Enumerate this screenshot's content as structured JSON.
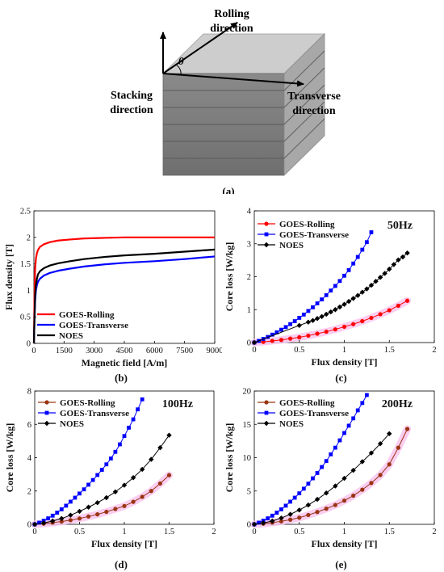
{
  "figure_a": {
    "labels": {
      "rolling": [
        "Rolling",
        "direction"
      ],
      "transverse": [
        "Transverse",
        "direction"
      ],
      "stacking": [
        "Stacking",
        "direction"
      ],
      "angle": "θ"
    },
    "caption": "(a)"
  },
  "colors": {
    "goes_rolling_b": "#ff0000",
    "goes_rolling": "#9a3412",
    "goes_transverse": "#0000ff",
    "noes": "#000000",
    "highlight": "#f9c6ee"
  },
  "chart_data": [
    {
      "id": "b",
      "type": "line",
      "caption": "(b)",
      "xlabel": "Magnetic field [A/m]",
      "ylabel": "Flux density [T]",
      "xlim": [
        0,
        9000
      ],
      "ylim": [
        0,
        2.5
      ],
      "xticks": [
        "0",
        "1500",
        "3000",
        "4500",
        "6000",
        "7500",
        "9000"
      ],
      "yticks": [
        "0",
        "0.5",
        "1",
        "1.5",
        "2",
        "2.5"
      ],
      "xtick_values": [
        0,
        1500,
        3000,
        4500,
        6000,
        7500,
        9000
      ],
      "ytick_values": [
        0,
        0.5,
        1,
        1.5,
        2,
        2.5
      ],
      "legend_position": "bottom-left",
      "series": [
        {
          "name": "GOES-Rolling",
          "color": "#ff0000",
          "x": [
            0,
            30,
            60,
            100,
            150,
            200,
            300,
            500,
            800,
            1200,
            1800,
            2500,
            3500,
            4500,
            6000,
            7500,
            9000
          ],
          "y": [
            0,
            0.9,
            1.4,
            1.6,
            1.7,
            1.76,
            1.82,
            1.87,
            1.91,
            1.94,
            1.96,
            1.98,
            1.99,
            2.0,
            2.0,
            2.0,
            2.0
          ]
        },
        {
          "name": "GOES-Transverse",
          "color": "#0000ff",
          "x": [
            0,
            30,
            60,
            100,
            150,
            200,
            300,
            500,
            800,
            1200,
            1800,
            2500,
            3500,
            4500,
            6000,
            7500,
            9000
          ],
          "y": [
            0,
            0.45,
            0.8,
            1.0,
            1.1,
            1.16,
            1.22,
            1.28,
            1.33,
            1.37,
            1.41,
            1.45,
            1.49,
            1.52,
            1.55,
            1.59,
            1.64
          ]
        },
        {
          "name": "NOES",
          "color": "#000000",
          "x": [
            0,
            30,
            60,
            100,
            150,
            200,
            300,
            500,
            800,
            1200,
            1800,
            2500,
            3500,
            4500,
            6000,
            7500,
            9000
          ],
          "y": [
            0,
            0.5,
            0.9,
            1.1,
            1.22,
            1.3,
            1.36,
            1.42,
            1.47,
            1.51,
            1.55,
            1.59,
            1.63,
            1.66,
            1.69,
            1.73,
            1.77
          ]
        }
      ]
    },
    {
      "id": "c",
      "type": "line",
      "caption": "(c)",
      "annotation": "50Hz",
      "xlabel": "Flux density [T]",
      "ylabel": "Core loss [W/kg]",
      "xlim": [
        0,
        2
      ],
      "ylim": [
        0,
        4
      ],
      "xticks": [
        "0",
        "0.5",
        "1",
        "1.5",
        "2"
      ],
      "yticks": [
        "0",
        "1",
        "2",
        "3",
        "4"
      ],
      "xtick_values": [
        0,
        0.5,
        1,
        1.5,
        2
      ],
      "ytick_values": [
        0,
        1,
        2,
        3,
        4
      ],
      "legend_position": "top-left",
      "series": [
        {
          "name": "GOES-Rolling",
          "color": "#ff0000",
          "marker": "circle",
          "highlight": true,
          "x": [
            0.0,
            0.1,
            0.2,
            0.3,
            0.4,
            0.5,
            0.6,
            0.7,
            0.8,
            0.9,
            1.0,
            1.1,
            1.2,
            1.3,
            1.4,
            1.5,
            1.6,
            1.7
          ],
          "y": [
            0.0,
            0.02,
            0.05,
            0.08,
            0.12,
            0.16,
            0.21,
            0.27,
            0.33,
            0.4,
            0.48,
            0.56,
            0.65,
            0.75,
            0.86,
            0.98,
            1.12,
            1.27
          ]
        },
        {
          "name": "GOES-Transverse",
          "color": "#0000ff",
          "marker": "square",
          "x": [
            0.0,
            0.05,
            0.1,
            0.15,
            0.2,
            0.25,
            0.3,
            0.35,
            0.4,
            0.45,
            0.5,
            0.55,
            0.6,
            0.65,
            0.7,
            0.75,
            0.8,
            0.85,
            0.9,
            0.95,
            1.0,
            1.05,
            1.1,
            1.15,
            1.2,
            1.25,
            1.3
          ],
          "y": [
            0.0,
            0.05,
            0.11,
            0.17,
            0.24,
            0.31,
            0.39,
            0.47,
            0.56,
            0.65,
            0.75,
            0.85,
            0.96,
            1.07,
            1.19,
            1.31,
            1.44,
            1.58,
            1.72,
            1.87,
            2.03,
            2.2,
            2.4,
            2.6,
            2.82,
            3.05,
            3.35
          ]
        },
        {
          "name": "NOES",
          "color": "#000000",
          "marker": "diamond",
          "x": [
            0.0,
            0.5,
            0.6,
            0.65,
            0.7,
            0.75,
            0.8,
            0.85,
            0.9,
            0.95,
            1.0,
            1.05,
            1.1,
            1.15,
            1.2,
            1.25,
            1.3,
            1.35,
            1.4,
            1.45,
            1.5,
            1.55,
            1.6,
            1.65,
            1.7
          ],
          "y": [
            0.0,
            0.52,
            0.62,
            0.67,
            0.73,
            0.79,
            0.86,
            0.93,
            1.0,
            1.08,
            1.16,
            1.25,
            1.34,
            1.43,
            1.53,
            1.63,
            1.74,
            1.86,
            1.98,
            2.1,
            2.23,
            2.37,
            2.51,
            2.6,
            2.72
          ]
        }
      ]
    },
    {
      "id": "d",
      "type": "line",
      "caption": "(d)",
      "annotation": "100Hz",
      "xlabel": "Flux density [T]",
      "ylabel": "Core loss [W/kg]",
      "xlim": [
        0,
        2
      ],
      "ylim": [
        0,
        8
      ],
      "xticks": [
        "0",
        "0.5",
        "1",
        "1.5",
        "2"
      ],
      "yticks": [
        "0",
        "2",
        "4",
        "6",
        "8"
      ],
      "xtick_values": [
        0,
        0.5,
        1,
        1.5,
        2
      ],
      "ytick_values": [
        0,
        2,
        4,
        6,
        8
      ],
      "legend_position": "top-left",
      "series": [
        {
          "name": "GOES-Rolling",
          "color": "#9a3412",
          "marker": "circle",
          "highlight": true,
          "x": [
            0.0,
            0.1,
            0.2,
            0.3,
            0.4,
            0.5,
            0.6,
            0.7,
            0.8,
            0.9,
            1.0,
            1.1,
            1.2,
            1.3,
            1.4,
            1.5
          ],
          "y": [
            0.0,
            0.04,
            0.1,
            0.17,
            0.25,
            0.35,
            0.47,
            0.6,
            0.75,
            0.92,
            1.1,
            1.35,
            1.65,
            2.0,
            2.45,
            2.95
          ]
        },
        {
          "name": "GOES-Transverse",
          "color": "#0000ff",
          "marker": "square",
          "x": [
            0.0,
            0.05,
            0.1,
            0.15,
            0.2,
            0.25,
            0.3,
            0.35,
            0.4,
            0.45,
            0.5,
            0.55,
            0.6,
            0.65,
            0.7,
            0.75,
            0.8,
            0.85,
            0.9,
            0.95,
            1.0,
            1.05,
            1.1,
            1.15,
            1.2
          ],
          "y": [
            0.0,
            0.1,
            0.22,
            0.36,
            0.52,
            0.7,
            0.9,
            1.12,
            1.36,
            1.6,
            1.85,
            2.1,
            2.38,
            2.66,
            2.96,
            3.27,
            3.6,
            3.95,
            4.35,
            4.8,
            5.3,
            5.8,
            6.3,
            6.9,
            7.5
          ]
        },
        {
          "name": "NOES",
          "color": "#000000",
          "marker": "diamond",
          "x": [
            0.0,
            0.1,
            0.2,
            0.3,
            0.4,
            0.5,
            0.6,
            0.7,
            0.8,
            0.9,
            1.0,
            1.1,
            1.2,
            1.3,
            1.4,
            1.5
          ],
          "y": [
            0.0,
            0.08,
            0.2,
            0.35,
            0.55,
            0.78,
            1.03,
            1.3,
            1.6,
            1.95,
            2.35,
            2.8,
            3.3,
            3.9,
            4.6,
            5.35
          ]
        }
      ]
    },
    {
      "id": "e",
      "type": "line",
      "caption": "(e)",
      "annotation": "200Hz",
      "xlabel": "Flux density [T]",
      "ylabel": "Core loss [W/kg]",
      "xlim": [
        0,
        2
      ],
      "ylim": [
        0,
        20
      ],
      "xticks": [
        "0",
        "0.5",
        "1",
        "1.5",
        "2"
      ],
      "yticks": [
        "0",
        "5",
        "10",
        "15",
        "20"
      ],
      "xtick_values": [
        0,
        0.5,
        1,
        1.5,
        2
      ],
      "ytick_values": [
        0,
        5,
        10,
        15,
        20
      ],
      "legend_position": "top-left",
      "series": [
        {
          "name": "GOES-Rolling",
          "color": "#9a3412",
          "marker": "circle",
          "highlight": true,
          "x": [
            0.0,
            0.1,
            0.2,
            0.3,
            0.4,
            0.5,
            0.6,
            0.7,
            0.8,
            0.9,
            1.0,
            1.1,
            1.2,
            1.3,
            1.4,
            1.5,
            1.6,
            1.7
          ],
          "y": [
            0.0,
            0.1,
            0.25,
            0.45,
            0.7,
            1.0,
            1.4,
            1.85,
            2.35,
            2.9,
            3.55,
            4.3,
            5.2,
            6.2,
            7.4,
            9.0,
            11.5,
            14.3
          ]
        },
        {
          "name": "GOES-Transverse",
          "color": "#0000ff",
          "marker": "square",
          "x": [
            0.0,
            0.05,
            0.1,
            0.15,
            0.2,
            0.25,
            0.3,
            0.35,
            0.4,
            0.45,
            0.5,
            0.55,
            0.6,
            0.65,
            0.7,
            0.75,
            0.8,
            0.85,
            0.9,
            0.95,
            1.0,
            1.05,
            1.1,
            1.15,
            1.2,
            1.25
          ],
          "y": [
            0.0,
            0.25,
            0.55,
            0.9,
            1.3,
            1.75,
            2.25,
            2.8,
            3.4,
            4.0,
            4.65,
            5.35,
            6.1,
            6.9,
            7.7,
            8.6,
            9.5,
            10.5,
            11.5,
            12.6,
            13.7,
            14.8,
            15.9,
            17.1,
            18.2,
            19.4
          ]
        },
        {
          "name": "NOES",
          "color": "#000000",
          "marker": "diamond",
          "x": [
            0.0,
            0.1,
            0.2,
            0.3,
            0.4,
            0.5,
            0.6,
            0.7,
            0.8,
            0.9,
            1.0,
            1.1,
            1.2,
            1.3,
            1.4,
            1.5
          ],
          "y": [
            0.0,
            0.2,
            0.5,
            0.95,
            1.5,
            2.15,
            2.9,
            3.75,
            4.7,
            5.75,
            6.9,
            8.1,
            9.4,
            10.7,
            12.1,
            13.6
          ]
        }
      ]
    }
  ]
}
